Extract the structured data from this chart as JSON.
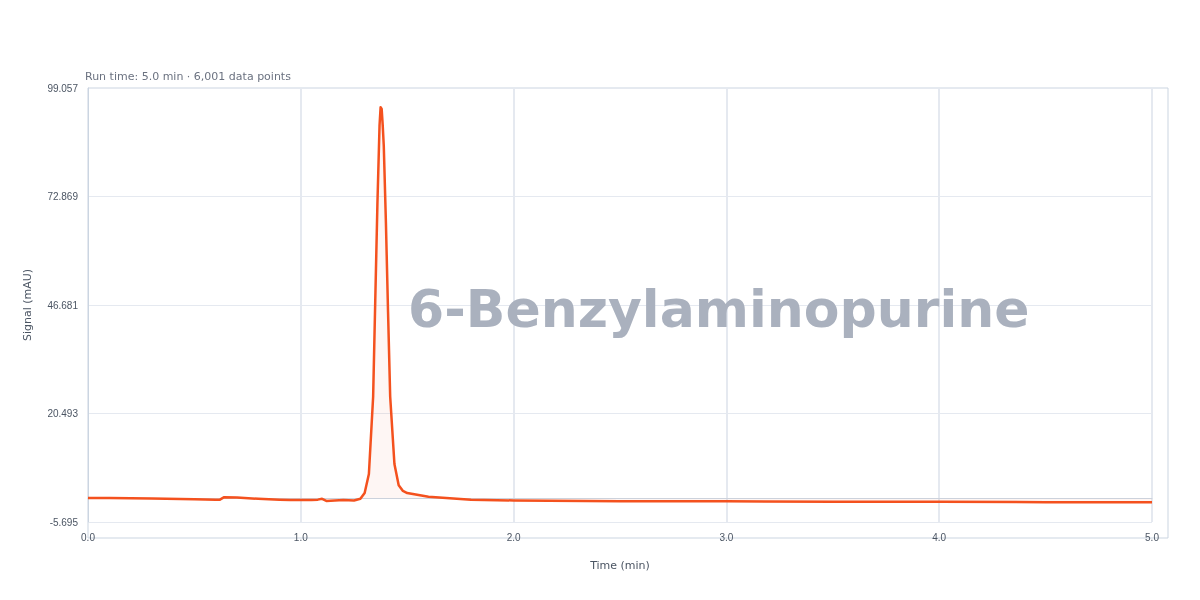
{
  "chart_data": {
    "type": "area",
    "subtitle": "Run time: 5.0 min · 6,001 data points",
    "annotations": [
      "6-Benzylaminopurine"
    ],
    "xlabel": "Time (min)",
    "ylabel": "Signal (mAU)",
    "series": [
      {
        "color": "#f4511e",
        "x": [
          0,
          0.1,
          0.3,
          0.5,
          0.6,
          0.62,
          0.64,
          0.7,
          0.8,
          0.9,
          0.95,
          1.0,
          1.05,
          1.08,
          1.1,
          1.12,
          1.2,
          1.25,
          1.28,
          1.3,
          1.32,
          1.34,
          1.35,
          1.36,
          1.37,
          1.375,
          1.38,
          1.385,
          1.39,
          1.4,
          1.41,
          1.42,
          1.44,
          1.46,
          1.48,
          1.5,
          1.6,
          1.8,
          2.0,
          2.5,
          3.0,
          3.5,
          4.0,
          4.5,
          5.0
        ],
        "values": [
          0.1,
          0.1,
          0,
          -0.2,
          -0.3,
          -0.3,
          0.3,
          0.2,
          -0.1,
          -0.3,
          -0.4,
          -0.4,
          -0.4,
          -0.3,
          -0.1,
          -0.6,
          -0.4,
          -0.5,
          -0.1,
          1.3,
          5.9,
          24.6,
          48,
          71,
          90,
          94.4,
          94,
          90,
          85,
          66.5,
          45,
          24.6,
          8.3,
          3.2,
          1.8,
          1.3,
          0.4,
          -0.3,
          -0.5,
          -0.7,
          -0.7,
          -0.8,
          -0.8,
          -0.9,
          -0.9
        ]
      }
    ],
    "xlim": [
      0,
      5
    ],
    "xticks": [
      {
        "value": 0,
        "label": "0.0"
      },
      {
        "value": 1,
        "label": "1.0"
      },
      {
        "value": 2,
        "label": "2.0"
      },
      {
        "value": 3,
        "label": "3.0"
      },
      {
        "value": 4,
        "label": "4.0"
      },
      {
        "value": 5,
        "label": "5.0"
      }
    ],
    "ylim": [
      -5.695,
      99.057
    ],
    "yticks": [
      -5.695,
      20.493,
      46.681,
      72.869,
      99.057
    ],
    "grid": true,
    "marker": "none",
    "line_style": "solid"
  }
}
